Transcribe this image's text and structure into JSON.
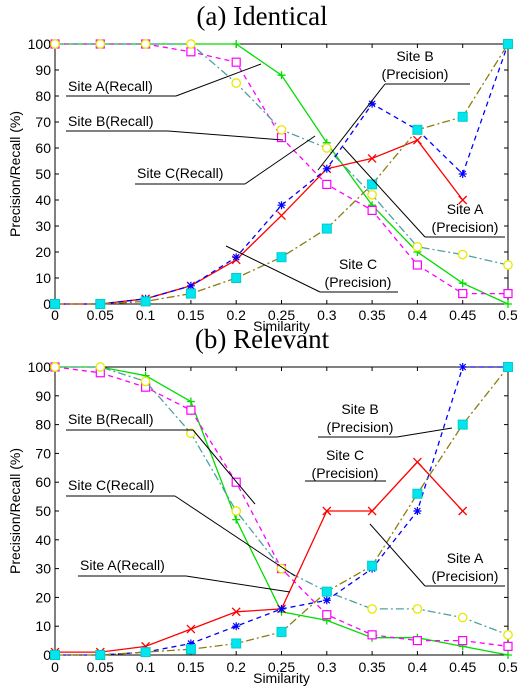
{
  "chart_data": [
    {
      "type": "line",
      "title": "(a) Identical",
      "xlabel": "Similarity",
      "ylabel": "Precision/Recall (%)",
      "x": [
        0,
        0.05,
        0.1,
        0.15,
        0.2,
        0.25,
        0.3,
        0.35,
        0.4,
        0.45,
        0.5
      ],
      "x_tick_labels": [
        "0",
        "0.05",
        "0.1",
        "0.15",
        "0.2",
        "0.25",
        "0.3",
        "0.35",
        "0.4",
        "0.45",
        "0.5"
      ],
      "y_ticks": [
        0,
        10,
        20,
        30,
        40,
        50,
        60,
        70,
        80,
        90,
        100
      ],
      "xlim": [
        0,
        0.5
      ],
      "ylim": [
        0,
        100
      ],
      "grid": false,
      "legend": "none",
      "series": [
        {
          "key": "a-recall",
          "color": "#00dd00",
          "dash": "solid",
          "marker": "plus",
          "values": [
            100,
            100,
            100,
            100,
            100,
            88,
            62,
            38,
            20,
            8,
            0
          ]
        },
        {
          "key": "b-recall",
          "color": "#ff00ff",
          "dash": "dash",
          "marker": "square-open",
          "values": [
            100,
            100,
            100,
            97,
            93,
            64,
            46,
            36,
            15,
            4,
            4
          ]
        },
        {
          "key": "c-recall",
          "color": "#50a0a0",
          "dash": "dashdot",
          "marker": "circle-open",
          "values": [
            100,
            100,
            100,
            100,
            85,
            67,
            60,
            42,
            22,
            19,
            15
          ]
        },
        {
          "key": "a-precision",
          "color": "#ff0000",
          "dash": "solid",
          "marker": "x",
          "values": [
            0,
            0,
            2,
            7,
            17,
            34,
            52,
            56,
            63,
            40,
            null
          ]
        },
        {
          "key": "b-precision",
          "color": "#0000ff",
          "dash": "dash",
          "marker": "star",
          "values": [
            0,
            0,
            2,
            7,
            18,
            38,
            52,
            77,
            67,
            50,
            100
          ]
        },
        {
          "key": "c-precision",
          "color": "#8b7d10",
          "dash": "dashdot",
          "marker": "square-filled",
          "values": [
            0,
            0,
            1,
            4,
            10,
            18,
            29,
            46,
            67,
            72,
            100
          ]
        }
      ],
      "annotations": [
        {
          "key": "a-recall",
          "lines": [
            "Site A(Recall)"
          ]
        },
        {
          "key": "b-recall",
          "lines": [
            "Site B(Recall)"
          ]
        },
        {
          "key": "c-recall",
          "lines": [
            "Site C(Recall)"
          ]
        },
        {
          "key": "b-precision",
          "lines": [
            "Site B",
            "(Precision)"
          ]
        },
        {
          "key": "a-precision",
          "lines": [
            "Site A",
            "(Precision)"
          ]
        },
        {
          "key": "c-precision",
          "lines": [
            "Site C",
            "(Precision)"
          ]
        }
      ]
    },
    {
      "type": "line",
      "title": "(b) Relevant",
      "xlabel": "Similarity",
      "ylabel": "Precision/Recall (%)",
      "x": [
        0,
        0.05,
        0.1,
        0.15,
        0.2,
        0.25,
        0.3,
        0.35,
        0.4,
        0.45,
        0.5
      ],
      "x_tick_labels": [
        "0",
        "0.05",
        "0.1",
        "0.15",
        "0.2",
        "0.25",
        "0.3",
        "0.35",
        "0.4",
        "0.45",
        "0.5"
      ],
      "y_ticks": [
        0,
        10,
        20,
        30,
        40,
        50,
        60,
        70,
        80,
        90,
        100
      ],
      "xlim": [
        0,
        0.5
      ],
      "ylim": [
        0,
        100
      ],
      "grid": false,
      "legend": "none",
      "series": [
        {
          "key": "a-recall",
          "color": "#00dd00",
          "dash": "solid",
          "marker": "plus",
          "values": [
            100,
            100,
            97,
            88,
            47,
            15,
            12,
            6,
            6,
            3,
            0
          ]
        },
        {
          "key": "b-recall",
          "color": "#ff00ff",
          "dash": "dash",
          "marker": "square-open",
          "values": [
            100,
            98,
            93,
            85,
            60,
            30,
            14,
            7,
            5,
            5,
            3
          ]
        },
        {
          "key": "c-recall",
          "color": "#50a0a0",
          "dash": "dashdot",
          "marker": "circle-open",
          "values": [
            100,
            100,
            95,
            77,
            50,
            30,
            22,
            16,
            16,
            13,
            7
          ]
        },
        {
          "key": "a-precision",
          "color": "#ff0000",
          "dash": "solid",
          "marker": "x",
          "values": [
            1,
            1,
            3,
            9,
            15,
            16,
            50,
            50,
            67,
            50,
            null
          ]
        },
        {
          "key": "b-precision",
          "color": "#0000ff",
          "dash": "dash",
          "marker": "star",
          "values": [
            0,
            0,
            1,
            4,
            10,
            16,
            19,
            30,
            50,
            100,
            100
          ]
        },
        {
          "key": "c-precision",
          "color": "#8b7d10",
          "dash": "dashdot",
          "marker": "square-filled",
          "values": [
            0,
            0,
            1,
            2,
            4,
            8,
            22,
            31,
            56,
            80,
            100
          ]
        }
      ],
      "annotations": [
        {
          "key": "b-recall",
          "lines": [
            "Site B(Recall)"
          ]
        },
        {
          "key": "c-recall",
          "lines": [
            "Site C(Recall)"
          ]
        },
        {
          "key": "a-recall",
          "lines": [
            "Site A(Recall)"
          ]
        },
        {
          "key": "b-precision",
          "lines": [
            "Site B",
            "(Precision)"
          ]
        },
        {
          "key": "c-precision",
          "lines": [
            "Site C",
            "(Precision)"
          ]
        },
        {
          "key": "a-precision",
          "lines": [
            "Site A",
            "(Precision)"
          ]
        }
      ]
    }
  ]
}
